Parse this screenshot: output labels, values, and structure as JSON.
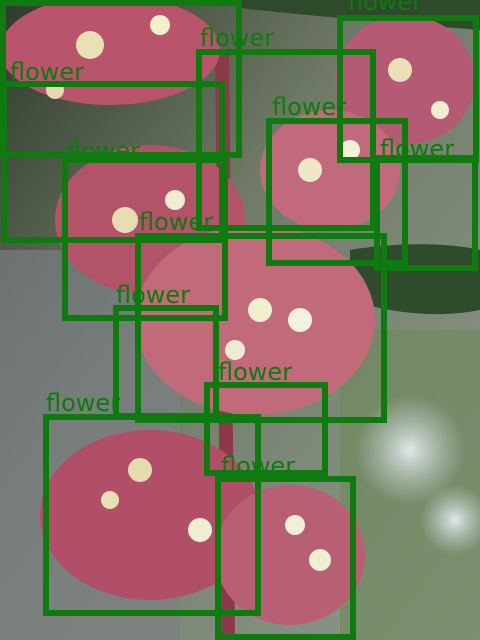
{
  "image": {
    "description_tag": "photo-flowers-with-detection-boxes",
    "box_color": "#0f7a0f"
  },
  "detections": [
    {
      "label": "flower"
    },
    {
      "label": "flower"
    },
    {
      "label": "flower"
    },
    {
      "label": "flower"
    },
    {
      "label": "flower"
    },
    {
      "label": "flower"
    },
    {
      "label": "flower"
    },
    {
      "label": "flower"
    },
    {
      "label": "flower"
    },
    {
      "label": "flower"
    },
    {
      "label": "flower"
    },
    {
      "label": "flower"
    },
    {
      "label": "flower"
    }
  ]
}
